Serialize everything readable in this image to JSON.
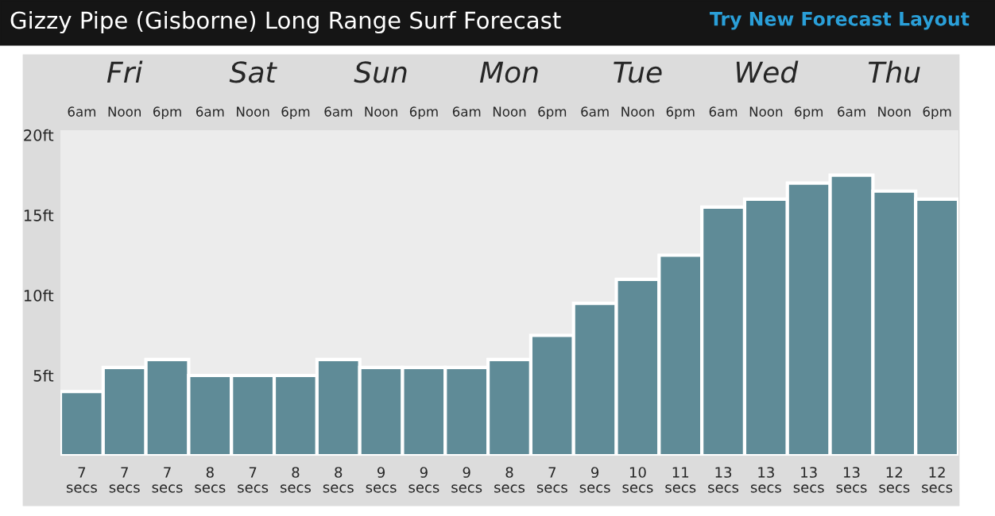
{
  "chart_data": {
    "type": "bar",
    "title": "Gizzy Pipe (Gisborne) Long Range Surf Forecast",
    "categories": [
      "6am",
      "Noon",
      "6pm",
      "6am",
      "Noon",
      "6pm",
      "6am",
      "Noon",
      "6pm",
      "6am",
      "Noon",
      "6pm",
      "6am",
      "Noon",
      "6pm",
      "6am",
      "Noon",
      "6pm",
      "6am",
      "Noon",
      "6pm"
    ],
    "values": [
      4,
      5.5,
      6,
      5,
      5,
      5,
      6,
      5.5,
      5.5,
      5.5,
      6,
      7.5,
      9.5,
      11,
      12.5,
      15.5,
      16,
      17,
      17.5,
      16.5,
      16
    ],
    "color": "#5f8b97",
    "ylim": [
      0,
      20.3
    ],
    "yticks": [
      {
        "value": 5,
        "label": "5ft"
      },
      {
        "value": 10,
        "label": "10ft"
      },
      {
        "value": 15,
        "label": "15ft"
      },
      {
        "value": 20,
        "label": "20ft"
      }
    ],
    "grid": false,
    "legend": false,
    "annotations": [
      "Try New Forecast Layout",
      "Fri",
      "Sat",
      "Sun",
      "Mon",
      "Tue",
      "Wed",
      "Thu",
      "7\nsecs",
      "7\nsecs",
      "7\nsecs",
      "8\nsecs",
      "7\nsecs",
      "8\nsecs",
      "8\nsecs",
      "9\nsecs",
      "9\nsecs",
      "9\nsecs",
      "8\nsecs",
      "7\nsecs",
      "9\nsecs",
      "10\nsecs",
      "11\nsecs",
      "13\nsecs",
      "13\nsecs",
      "13\nsecs",
      "13\nsecs",
      "12\nsecs",
      "12\nsecs"
    ]
  }
}
